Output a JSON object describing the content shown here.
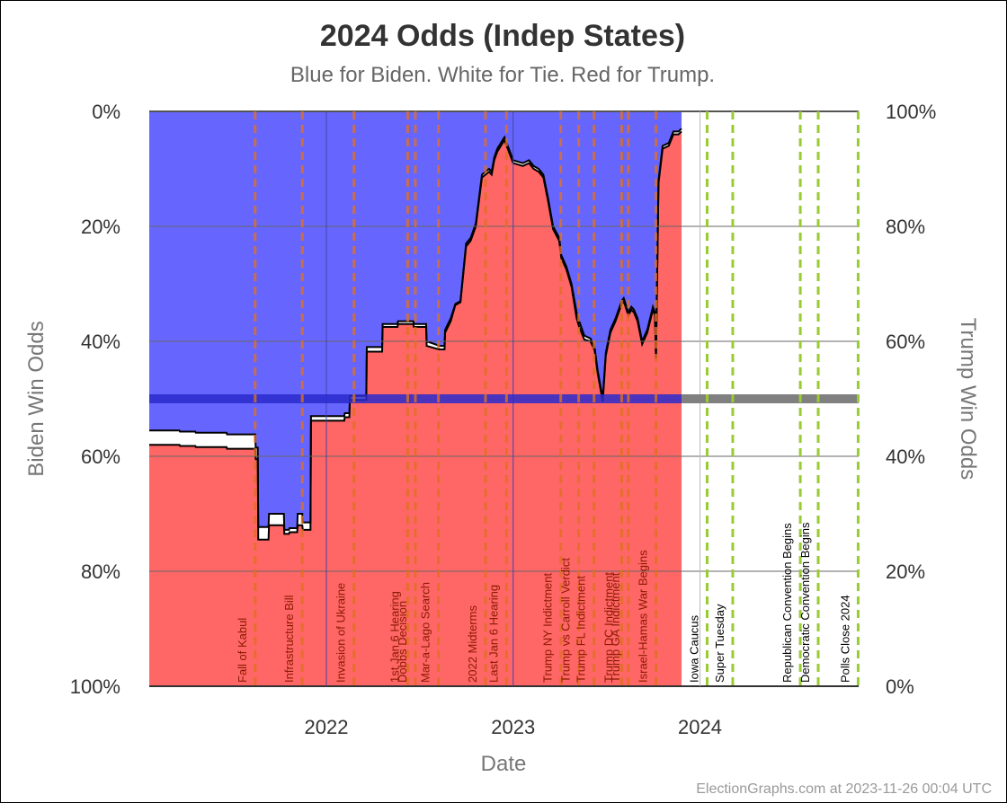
{
  "chart_data": {
    "type": "area",
    "title": "2024 Odds (Indep States)",
    "subtitle": "Blue for Biden. White for Tie. Red for Trump.",
    "xlabel": "Date",
    "ylabel_left": "Biden Win Odds",
    "ylabel_right": "Trump Win Odds",
    "xlim": [
      "2021-01-20",
      "2024-11-06"
    ],
    "ylim_left": [
      0,
      100
    ],
    "left_ticks": [
      "0%",
      "20%",
      "40%",
      "60%",
      "80%",
      "100%"
    ],
    "right_ticks": [
      "100%",
      "80%",
      "60%",
      "40%",
      "20%",
      "0%"
    ],
    "x_ticks": [
      {
        "date": "2022-01-01",
        "label": "2022"
      },
      {
        "date": "2023-01-01",
        "label": "2023"
      },
      {
        "date": "2024-01-01",
        "label": "2024"
      }
    ],
    "colors": {
      "biden": "#6666ff",
      "tie": "#ffffff",
      "trump": "#ff6666",
      "midline_data": "#2a2acc",
      "midline_future": "#808080",
      "past_event": "#e07020",
      "future_event": "#99cc33"
    },
    "data_end": "2023-11-26",
    "series": [
      {
        "name": "Biden",
        "x": [
          "2021-01-20",
          "2021-03-20",
          "2021-03-21",
          "2021-04-20",
          "2021-04-21",
          "2021-06-20",
          "2021-06-21",
          "2021-07-01",
          "2021-08-15",
          "2021-08-16",
          "2021-08-20",
          "2021-08-21",
          "2021-09-10",
          "2021-09-11",
          "2021-10-10",
          "2021-10-11",
          "2021-10-20",
          "2021-10-21",
          "2021-11-05",
          "2021-11-06",
          "2021-11-15",
          "2021-11-16",
          "2021-12-01",
          "2021-12-02",
          "2022-02-05",
          "2022-02-06",
          "2022-02-15",
          "2022-02-16",
          "2022-03-20",
          "2022-03-21",
          "2022-04-20",
          "2022-04-21",
          "2022-05-20",
          "2022-05-21",
          "2022-06-20",
          "2022-06-21",
          "2022-07-15",
          "2022-07-16",
          "2022-08-01",
          "2022-08-10",
          "2022-08-20",
          "2022-08-21",
          "2022-09-01",
          "2022-09-10",
          "2022-09-20",
          "2022-10-01",
          "2022-10-10",
          "2022-10-20",
          "2022-11-01",
          "2022-11-15",
          "2022-11-20",
          "2022-11-25",
          "2022-12-01",
          "2022-12-15",
          "2023-01-01",
          "2023-01-20",
          "2023-02-01",
          "2023-02-10",
          "2023-02-20",
          "2023-03-01",
          "2023-03-10",
          "2023-03-20",
          "2023-04-01",
          "2023-04-05",
          "2023-04-15",
          "2023-04-25",
          "2023-05-05",
          "2023-05-10",
          "2023-05-20",
          "2023-06-01",
          "2023-06-09",
          "2023-06-15",
          "2023-06-25",
          "2023-07-01",
          "2023-07-10",
          "2023-07-20",
          "2023-08-01",
          "2023-08-05",
          "2023-08-14",
          "2023-08-20",
          "2023-08-25",
          "2023-09-01",
          "2023-09-10",
          "2023-09-20",
          "2023-10-01",
          "2023-10-05",
          "2023-10-07",
          "2023-10-12",
          "2023-10-20",
          "2023-11-01",
          "2023-11-10",
          "2023-11-20",
          "2023-11-26"
        ],
        "values": [
          55.5,
          55.5,
          55.7,
          55.7,
          55.9,
          55.9,
          56.2,
          56.2,
          56.2,
          58.5,
          58.5,
          72.3,
          72.3,
          70.0,
          70.0,
          72.8,
          72.8,
          72.5,
          72.5,
          70.0,
          70.0,
          71.5,
          71.5,
          53.0,
          53.0,
          52.5,
          52.5,
          49.5,
          49.5,
          41.0,
          41.0,
          37.0,
          37.0,
          36.5,
          36.5,
          37.0,
          37.0,
          40.0,
          40.5,
          40.8,
          40.8,
          38.0,
          36.0,
          33.5,
          33.0,
          23.0,
          22.0,
          19.5,
          11.0,
          10.0,
          10.5,
          8.0,
          6.5,
          4.5,
          8.5,
          9.0,
          8.5,
          9.5,
          10.0,
          11.0,
          15.0,
          20.0,
          22.0,
          25.0,
          27.0,
          30.0,
          35.0,
          36.5,
          39.0,
          39.5,
          41.0,
          45.0,
          50.0,
          42.0,
          38.0,
          36.0,
          33.0,
          32.5,
          35.0,
          34.0,
          34.5,
          36.0,
          40.0,
          38.0,
          34.0,
          35.0,
          42.5,
          12.0,
          6.0,
          5.5,
          3.5,
          3.5,
          3.0
        ]
      },
      {
        "name": "Trump",
        "x": [
          "2021-01-20",
          "2021-03-20",
          "2021-03-21",
          "2021-04-20",
          "2021-04-21",
          "2021-06-20",
          "2021-06-21",
          "2021-07-01",
          "2021-08-15",
          "2021-08-16",
          "2021-08-20",
          "2021-08-21",
          "2021-09-10",
          "2021-09-11",
          "2021-10-10",
          "2021-10-11",
          "2021-10-20",
          "2021-10-21",
          "2021-11-05",
          "2021-11-06",
          "2021-11-15",
          "2021-11-16",
          "2021-12-01",
          "2021-12-02",
          "2022-02-05",
          "2022-02-06",
          "2022-02-15",
          "2022-02-16",
          "2022-03-20",
          "2022-03-21",
          "2022-04-20",
          "2022-04-21",
          "2022-05-20",
          "2022-05-21",
          "2022-06-20",
          "2022-06-21",
          "2022-07-15",
          "2022-07-16",
          "2022-08-01",
          "2022-08-10",
          "2022-08-20",
          "2022-08-21",
          "2022-09-01",
          "2022-09-10",
          "2022-09-20",
          "2022-10-01",
          "2022-10-10",
          "2022-10-20",
          "2022-11-01",
          "2022-11-15",
          "2022-11-20",
          "2022-11-25",
          "2022-12-01",
          "2022-12-15",
          "2023-01-01",
          "2023-01-20",
          "2023-02-01",
          "2023-02-10",
          "2023-02-20",
          "2023-03-01",
          "2023-03-10",
          "2023-03-20",
          "2023-04-01",
          "2023-04-05",
          "2023-04-15",
          "2023-04-25",
          "2023-05-05",
          "2023-05-10",
          "2023-05-20",
          "2023-06-01",
          "2023-06-09",
          "2023-06-15",
          "2023-06-25",
          "2023-07-01",
          "2023-07-10",
          "2023-07-20",
          "2023-08-01",
          "2023-08-05",
          "2023-08-14",
          "2023-08-20",
          "2023-08-25",
          "2023-09-01",
          "2023-09-10",
          "2023-09-20",
          "2023-10-01",
          "2023-10-05",
          "2023-10-07",
          "2023-10-12",
          "2023-10-20",
          "2023-11-01",
          "2023-11-10",
          "2023-11-20",
          "2023-11-26"
        ],
        "values": [
          42.0,
          42.0,
          41.8,
          41.8,
          41.6,
          41.6,
          41.3,
          41.3,
          41.3,
          39.5,
          39.5,
          25.5,
          25.5,
          28.0,
          28.0,
          26.5,
          26.5,
          26.8,
          26.8,
          28.0,
          28.0,
          27.2,
          27.2,
          46.2,
          46.2,
          46.8,
          46.8,
          49.8,
          49.8,
          58.2,
          58.2,
          62.5,
          62.5,
          63.0,
          63.0,
          62.5,
          62.5,
          59.2,
          58.8,
          58.6,
          58.6,
          61.5,
          63.5,
          66.3,
          66.8,
          76.5,
          77.5,
          80.0,
          88.5,
          89.5,
          89.0,
          91.5,
          93.0,
          95.0,
          91.0,
          90.5,
          91.0,
          90.0,
          89.5,
          88.5,
          84.5,
          79.5,
          77.5,
          74.5,
          72.5,
          69.5,
          64.0,
          62.5,
          60.3,
          60.0,
          58.5,
          54.5,
          49.5,
          57.5,
          61.5,
          63.5,
          66.5,
          67.0,
          64.5,
          65.5,
          65.0,
          63.5,
          59.5,
          61.5,
          65.5,
          64.5,
          57.0,
          87.5,
          93.5,
          94.0,
          96.0,
          96.0,
          96.5
        ]
      }
    ],
    "events": [
      {
        "date": "2021-08-15",
        "label": "Fall of Kabul"
      },
      {
        "date": "2021-11-15",
        "label": "Infrastructure Bill"
      },
      {
        "date": "2022-02-24",
        "label": "Invasion of Ukraine"
      },
      {
        "date": "2022-06-09",
        "label": "1st Jan 6 Hearing"
      },
      {
        "date": "2022-06-24",
        "label": "Dobbs Decision"
      },
      {
        "date": "2022-08-08",
        "label": "Mar-a-Lago Search"
      },
      {
        "date": "2022-11-08",
        "label": "2022 Midterms"
      },
      {
        "date": "2022-12-19",
        "label": "Last Jan 6 Hearing"
      },
      {
        "date": "2023-04-04",
        "label": "Trump NY Indictment"
      },
      {
        "date": "2023-05-09",
        "label": "Trump vs Carroll Verdict"
      },
      {
        "date": "2023-06-08",
        "label": "Trump FL Indictment"
      },
      {
        "date": "2023-08-01",
        "label": "Trump DC Indictment"
      },
      {
        "date": "2023-08-14",
        "label": "Trump GA Indictment"
      },
      {
        "date": "2023-10-07",
        "label": "Israel-Hamas War Begins"
      },
      {
        "date": "2024-01-15",
        "label": "Iowa Caucus"
      },
      {
        "date": "2024-03-05",
        "label": "Super Tuesday"
      },
      {
        "date": "2024-07-15",
        "label": "Republican Convention Begins"
      },
      {
        "date": "2024-08-19",
        "label": "Democratic Convention Begins"
      },
      {
        "date": "2024-11-05",
        "label": "Polls Close 2024"
      }
    ],
    "grid": true
  },
  "credit": "ElectionGraphs.com at 2023-11-26 00:04 UTC"
}
